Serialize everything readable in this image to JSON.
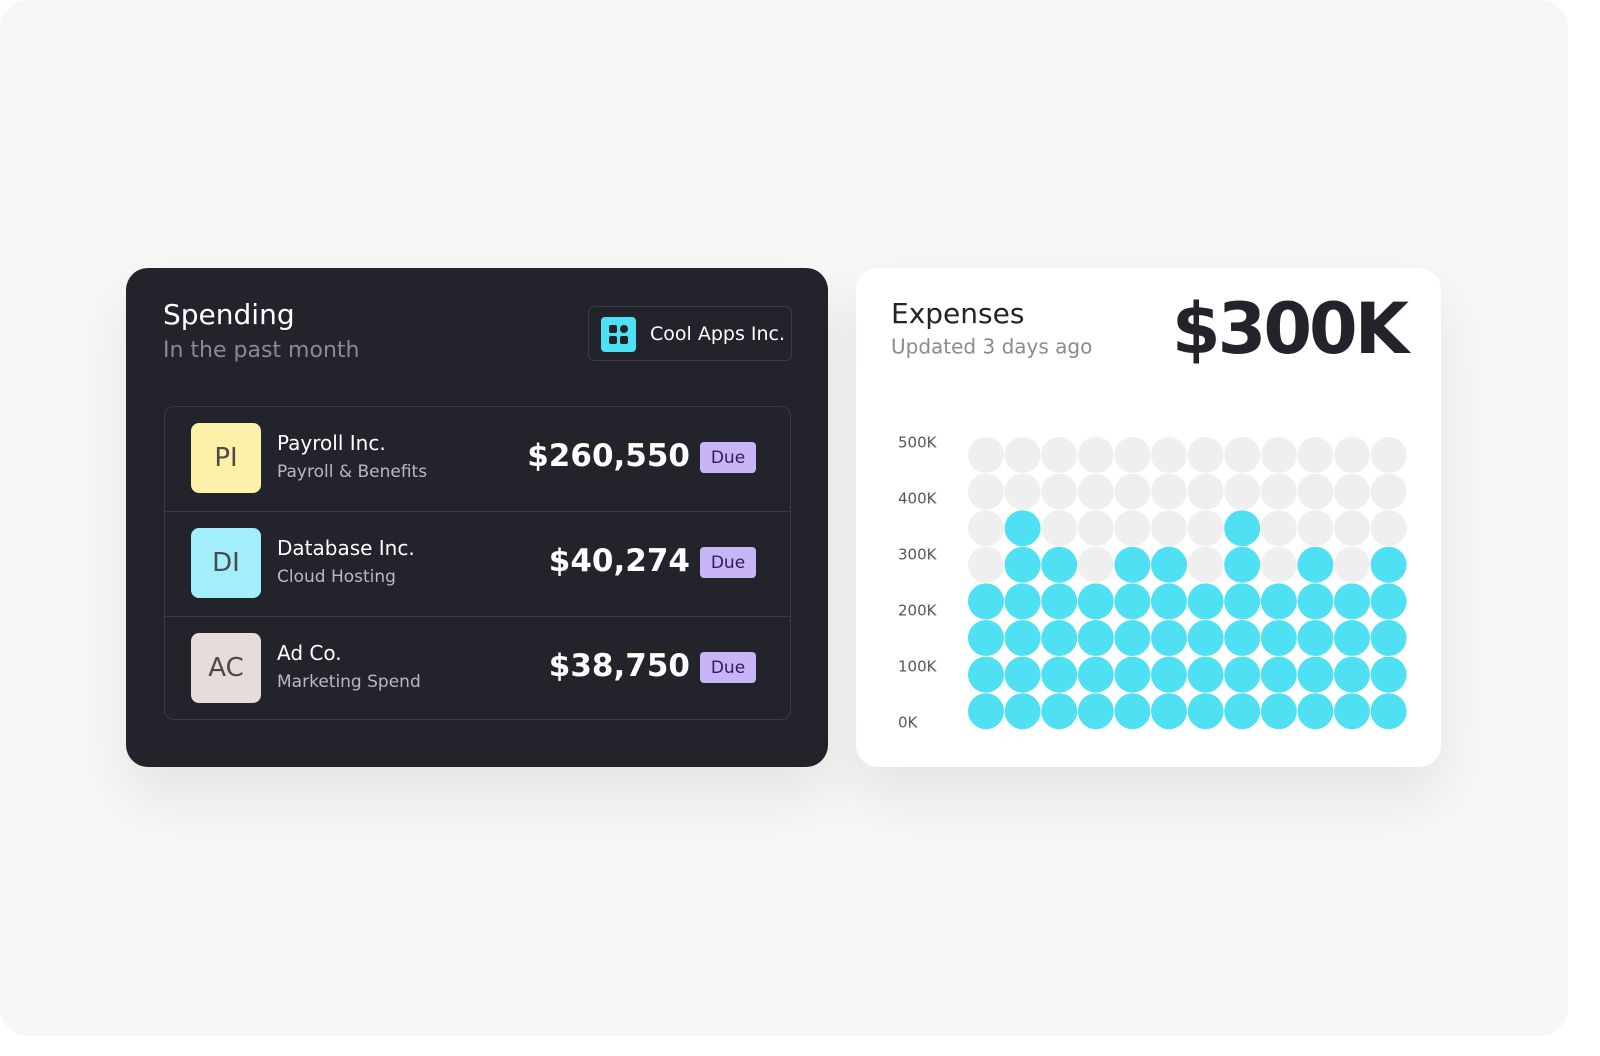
{
  "spending": {
    "title": "Spending",
    "subtitle": "In the past month",
    "company": "Cool Apps Inc.",
    "rows": [
      {
        "initials": "PI",
        "name": "Payroll Inc.",
        "category": "Payroll & Benefits",
        "amount": "$260,550",
        "status": "Due"
      },
      {
        "initials": "DI",
        "name": "Database Inc.",
        "category": "Cloud Hosting",
        "amount": "$40,274",
        "status": "Due"
      },
      {
        "initials": "AC",
        "name": "Ad Co.",
        "category": "Marketing Spend",
        "amount": "$38,750",
        "status": "Due"
      }
    ]
  },
  "chart_data": {
    "type": "dot",
    "title": "Expenses",
    "subtitle": "Updated 3 days ago",
    "annotations": [
      "$300K"
    ],
    "values": [
      250,
      375,
      312.5,
      250,
      312.5,
      312.5,
      250,
      375,
      250,
      312.5,
      250,
      312.5
    ],
    "color": "#4fe0f3",
    "ylim": [
      0,
      500
    ],
    "yticks": [
      {
        "value": 0,
        "label": "0K"
      },
      {
        "value": 100,
        "label": "100K"
      },
      {
        "value": 200,
        "label": "200K"
      },
      {
        "value": 300,
        "label": "300K"
      },
      {
        "value": 400,
        "label": "400K"
      },
      {
        "value": 500,
        "label": "500K"
      }
    ]
  }
}
